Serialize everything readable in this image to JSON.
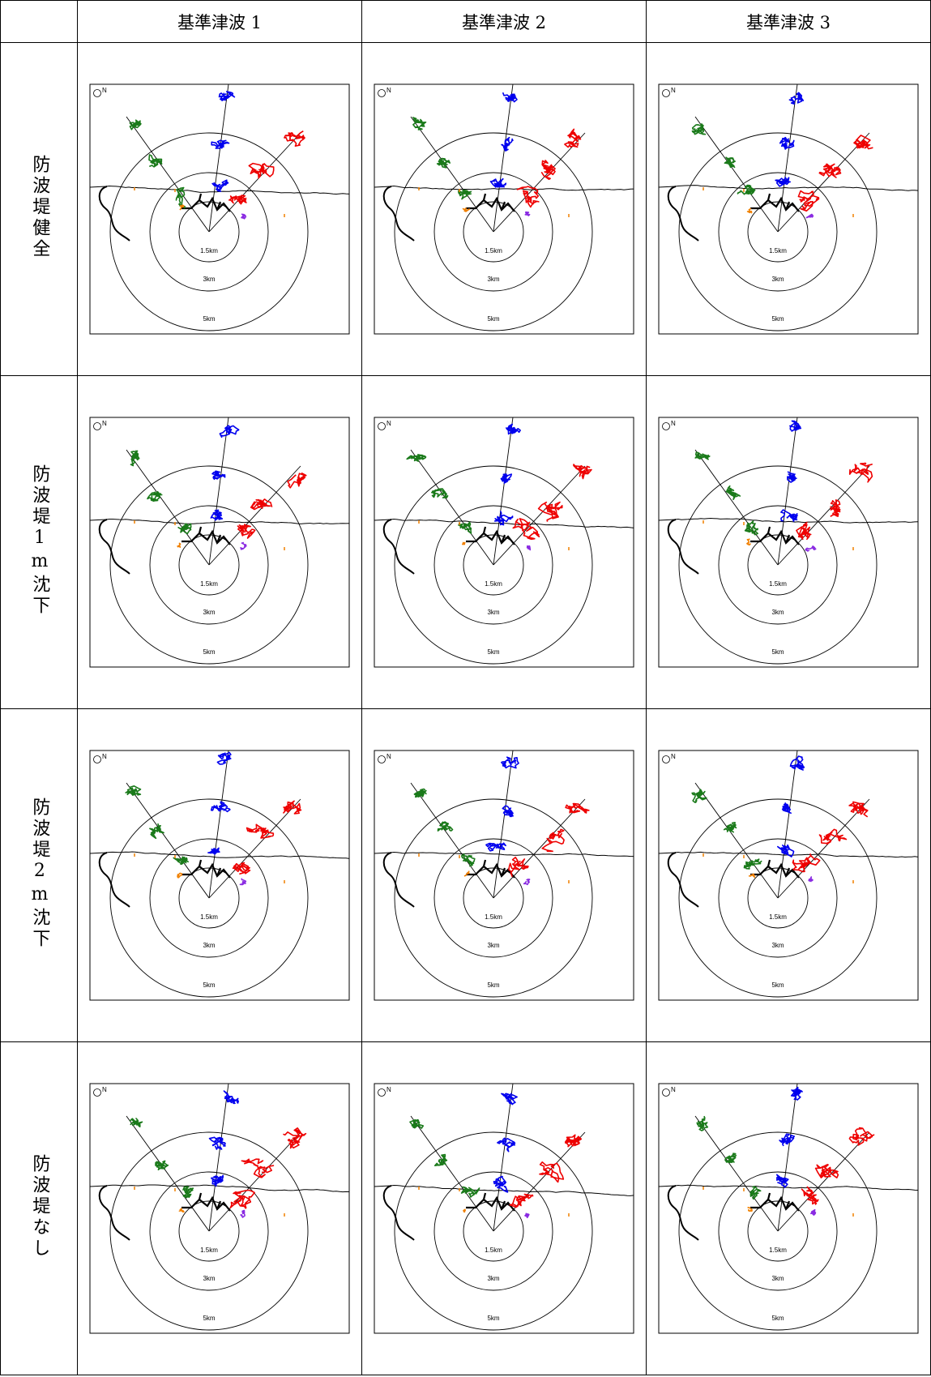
{
  "column_headers": [
    "基準津波 1",
    "基準津波 2",
    "基準津波 3"
  ],
  "row_headers": [
    "防波堤健全",
    "防波堤1m沈下",
    "防波堤2m沈下",
    "防波堤なし"
  ],
  "diagram": {
    "compass_label": "N",
    "ring_labels": [
      "1.5km",
      "3km",
      "5km"
    ]
  }
}
